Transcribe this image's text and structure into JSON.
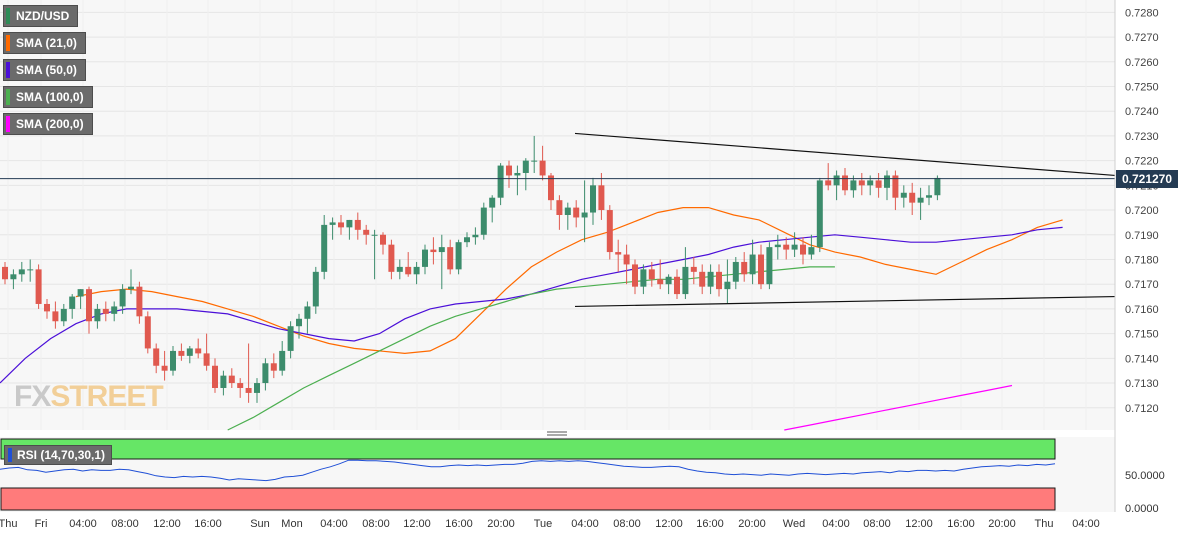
{
  "legend": [
    {
      "label": "NZD/USD",
      "color": "#2e8b57"
    },
    {
      "label": "SMA (21,0)",
      "color": "#ff6a00"
    },
    {
      "label": "SMA (50,0)",
      "color": "#4b0fd8"
    },
    {
      "label": "SMA (100,0)",
      "color": "#4caf50"
    },
    {
      "label": "SMA (200,0)",
      "color": "#ff00ff"
    }
  ],
  "price_label": "0.721270",
  "logo": {
    "part1": "FX",
    "part2": "STREET"
  },
  "rsi": {
    "label": "RSI (14,70,30,1)",
    "axis_labels": [
      "50.0000",
      "0.0000"
    ]
  },
  "colors": {
    "up": "#3c8c6c",
    "down": "#e0594f",
    "grid": "#e6e6e6",
    "overbought_zone": "#66e666",
    "oversold_zone": "#ff7b7b",
    "rsi_line": "#1f4fd6"
  },
  "chart_data": {
    "type": "candlestick",
    "symbol": "NZD/USD",
    "ylim": [
      0.7111,
      0.7285
    ],
    "y_ticks": [
      "0.7280",
      "0.7270",
      "0.7260",
      "0.7250",
      "0.7240",
      "0.7230",
      "0.7220",
      "0.7210",
      "0.7200",
      "0.7190",
      "0.7180",
      "0.7170",
      "0.7160",
      "0.7150",
      "0.7140",
      "0.7130",
      "0.7120"
    ],
    "x_ticks": [
      "Thu",
      "Fri",
      "04:00",
      "08:00",
      "12:00",
      "16:00",
      "Sun",
      "Mon",
      "04:00",
      "08:00",
      "12:00",
      "16:00",
      "20:00",
      "Tue",
      "04:00",
      "08:00",
      "12:00",
      "16:00",
      "20:00",
      "Wed",
      "04:00",
      "08:00",
      "12:00",
      "16:00",
      "20:00",
      "Thu",
      "04:00"
    ],
    "current_price": 0.72127,
    "candles": [
      {
        "o": 0.7177,
        "h": 0.7179,
        "l": 0.717,
        "c": 0.7172
      },
      {
        "o": 0.7172,
        "h": 0.7176,
        "l": 0.7168,
        "c": 0.7174
      },
      {
        "o": 0.7174,
        "h": 0.7179,
        "l": 0.7171,
        "c": 0.7176
      },
      {
        "o": 0.7176,
        "h": 0.718,
        "l": 0.7171,
        "c": 0.7176
      },
      {
        "o": 0.7176,
        "h": 0.7178,
        "l": 0.716,
        "c": 0.7162
      },
      {
        "o": 0.7162,
        "h": 0.7164,
        "l": 0.7156,
        "c": 0.7159
      },
      {
        "o": 0.7159,
        "h": 0.7163,
        "l": 0.7152,
        "c": 0.7155
      },
      {
        "o": 0.7155,
        "h": 0.7162,
        "l": 0.7153,
        "c": 0.716
      },
      {
        "o": 0.716,
        "h": 0.7166,
        "l": 0.7156,
        "c": 0.7165
      },
      {
        "o": 0.7165,
        "h": 0.7168,
        "l": 0.716,
        "c": 0.7168
      },
      {
        "o": 0.7168,
        "h": 0.7169,
        "l": 0.715,
        "c": 0.7155
      },
      {
        "o": 0.7155,
        "h": 0.7162,
        "l": 0.7152,
        "c": 0.716
      },
      {
        "o": 0.716,
        "h": 0.7163,
        "l": 0.7155,
        "c": 0.7158
      },
      {
        "o": 0.7158,
        "h": 0.7163,
        "l": 0.7155,
        "c": 0.7161
      },
      {
        "o": 0.7161,
        "h": 0.717,
        "l": 0.7158,
        "c": 0.7168
      },
      {
        "o": 0.7168,
        "h": 0.7176,
        "l": 0.7166,
        "c": 0.7169
      },
      {
        "o": 0.7169,
        "h": 0.7171,
        "l": 0.7154,
        "c": 0.7157
      },
      {
        "o": 0.7157,
        "h": 0.7159,
        "l": 0.7142,
        "c": 0.7144
      },
      {
        "o": 0.7144,
        "h": 0.7146,
        "l": 0.7134,
        "c": 0.7137
      },
      {
        "o": 0.7137,
        "h": 0.7143,
        "l": 0.7131,
        "c": 0.7135
      },
      {
        "o": 0.7135,
        "h": 0.7145,
        "l": 0.7133,
        "c": 0.7143
      },
      {
        "o": 0.7143,
        "h": 0.7146,
        "l": 0.7139,
        "c": 0.7141
      },
      {
        "o": 0.7141,
        "h": 0.7145,
        "l": 0.7138,
        "c": 0.7144
      },
      {
        "o": 0.7144,
        "h": 0.7148,
        "l": 0.714,
        "c": 0.7142
      },
      {
        "o": 0.7142,
        "h": 0.715,
        "l": 0.7135,
        "c": 0.7137
      },
      {
        "o": 0.7137,
        "h": 0.714,
        "l": 0.7126,
        "c": 0.7128
      },
      {
        "o": 0.7128,
        "h": 0.7135,
        "l": 0.7125,
        "c": 0.7133
      },
      {
        "o": 0.7133,
        "h": 0.7136,
        "l": 0.7128,
        "c": 0.713
      },
      {
        "o": 0.713,
        "h": 0.7132,
        "l": 0.7124,
        "c": 0.7128
      },
      {
        "o": 0.7128,
        "h": 0.7146,
        "l": 0.7122,
        "c": 0.7126
      },
      {
        "o": 0.7126,
        "h": 0.7132,
        "l": 0.7122,
        "c": 0.713
      },
      {
        "o": 0.713,
        "h": 0.714,
        "l": 0.7127,
        "c": 0.7138
      },
      {
        "o": 0.7138,
        "h": 0.7142,
        "l": 0.7132,
        "c": 0.7135
      },
      {
        "o": 0.7135,
        "h": 0.7147,
        "l": 0.7133,
        "c": 0.7143
      },
      {
        "o": 0.7143,
        "h": 0.7155,
        "l": 0.714,
        "c": 0.7153
      },
      {
        "o": 0.7153,
        "h": 0.7158,
        "l": 0.7148,
        "c": 0.7156
      },
      {
        "o": 0.7156,
        "h": 0.7163,
        "l": 0.715,
        "c": 0.7161
      },
      {
        "o": 0.7161,
        "h": 0.7177,
        "l": 0.7158,
        "c": 0.7175
      },
      {
        "o": 0.7175,
        "h": 0.7198,
        "l": 0.7172,
        "c": 0.7194
      },
      {
        "o": 0.7194,
        "h": 0.7197,
        "l": 0.7188,
        "c": 0.7195
      },
      {
        "o": 0.7195,
        "h": 0.7198,
        "l": 0.719,
        "c": 0.7193
      },
      {
        "o": 0.7193,
        "h": 0.7196,
        "l": 0.7188,
        "c": 0.7196
      },
      {
        "o": 0.7196,
        "h": 0.7199,
        "l": 0.7188,
        "c": 0.7192
      },
      {
        "o": 0.7192,
        "h": 0.7194,
        "l": 0.7186,
        "c": 0.719
      },
      {
        "o": 0.719,
        "h": 0.7192,
        "l": 0.7172,
        "c": 0.719
      },
      {
        "o": 0.719,
        "h": 0.7191,
        "l": 0.7182,
        "c": 0.7186
      },
      {
        "o": 0.7186,
        "h": 0.7188,
        "l": 0.7172,
        "c": 0.7175
      },
      {
        "o": 0.7175,
        "h": 0.718,
        "l": 0.7172,
        "c": 0.7177
      },
      {
        "o": 0.7177,
        "h": 0.7183,
        "l": 0.7173,
        "c": 0.7174
      },
      {
        "o": 0.7174,
        "h": 0.7179,
        "l": 0.717,
        "c": 0.7177
      },
      {
        "o": 0.7177,
        "h": 0.7186,
        "l": 0.7174,
        "c": 0.7184
      },
      {
        "o": 0.7184,
        "h": 0.7189,
        "l": 0.7178,
        "c": 0.7183
      },
      {
        "o": 0.7183,
        "h": 0.719,
        "l": 0.7168,
        "c": 0.7185
      },
      {
        "o": 0.7185,
        "h": 0.7188,
        "l": 0.7174,
        "c": 0.7176
      },
      {
        "o": 0.7176,
        "h": 0.7188,
        "l": 0.7174,
        "c": 0.7187
      },
      {
        "o": 0.7187,
        "h": 0.7191,
        "l": 0.7185,
        "c": 0.7189
      },
      {
        "o": 0.7189,
        "h": 0.7193,
        "l": 0.7186,
        "c": 0.719
      },
      {
        "o": 0.719,
        "h": 0.7203,
        "l": 0.7188,
        "c": 0.7201
      },
      {
        "o": 0.7201,
        "h": 0.7206,
        "l": 0.7195,
        "c": 0.7205
      },
      {
        "o": 0.7205,
        "h": 0.7219,
        "l": 0.7202,
        "c": 0.7218
      },
      {
        "o": 0.7218,
        "h": 0.722,
        "l": 0.7209,
        "c": 0.7214
      },
      {
        "o": 0.7214,
        "h": 0.7218,
        "l": 0.7206,
        "c": 0.7215
      },
      {
        "o": 0.7215,
        "h": 0.7221,
        "l": 0.7208,
        "c": 0.722
      },
      {
        "o": 0.722,
        "h": 0.723,
        "l": 0.7215,
        "c": 0.722
      },
      {
        "o": 0.722,
        "h": 0.7226,
        "l": 0.7212,
        "c": 0.7214
      },
      {
        "o": 0.7214,
        "h": 0.7215,
        "l": 0.72,
        "c": 0.7204
      },
      {
        "o": 0.7204,
        "h": 0.7206,
        "l": 0.7192,
        "c": 0.7198
      },
      {
        "o": 0.7198,
        "h": 0.7203,
        "l": 0.7192,
        "c": 0.7201
      },
      {
        "o": 0.7201,
        "h": 0.7204,
        "l": 0.7193,
        "c": 0.7197
      },
      {
        "o": 0.7197,
        "h": 0.7212,
        "l": 0.7187,
        "c": 0.7199
      },
      {
        "o": 0.7199,
        "h": 0.7213,
        "l": 0.7194,
        "c": 0.721
      },
      {
        "o": 0.721,
        "h": 0.7215,
        "l": 0.7196,
        "c": 0.72
      },
      {
        "o": 0.72,
        "h": 0.7202,
        "l": 0.718,
        "c": 0.7183
      },
      {
        "o": 0.7183,
        "h": 0.7188,
        "l": 0.7175,
        "c": 0.7182
      },
      {
        "o": 0.7182,
        "h": 0.7186,
        "l": 0.717,
        "c": 0.7178
      },
      {
        "o": 0.7178,
        "h": 0.718,
        "l": 0.7166,
        "c": 0.7169
      },
      {
        "o": 0.7169,
        "h": 0.7178,
        "l": 0.7166,
        "c": 0.7176
      },
      {
        "o": 0.7176,
        "h": 0.7179,
        "l": 0.7169,
        "c": 0.7172
      },
      {
        "o": 0.7172,
        "h": 0.718,
        "l": 0.7168,
        "c": 0.717
      },
      {
        "o": 0.717,
        "h": 0.7174,
        "l": 0.7166,
        "c": 0.7173
      },
      {
        "o": 0.7173,
        "h": 0.7176,
        "l": 0.7164,
        "c": 0.7166
      },
      {
        "o": 0.7166,
        "h": 0.7185,
        "l": 0.7164,
        "c": 0.7177
      },
      {
        "o": 0.7177,
        "h": 0.7181,
        "l": 0.717,
        "c": 0.7175
      },
      {
        "o": 0.7175,
        "h": 0.7178,
        "l": 0.7166,
        "c": 0.7169
      },
      {
        "o": 0.7169,
        "h": 0.7178,
        "l": 0.7166,
        "c": 0.7175
      },
      {
        "o": 0.7175,
        "h": 0.7178,
        "l": 0.7165,
        "c": 0.7168
      },
      {
        "o": 0.7168,
        "h": 0.718,
        "l": 0.7162,
        "c": 0.7171
      },
      {
        "o": 0.7171,
        "h": 0.7181,
        "l": 0.7168,
        "c": 0.7179
      },
      {
        "o": 0.7179,
        "h": 0.7183,
        "l": 0.7171,
        "c": 0.7174
      },
      {
        "o": 0.7174,
        "h": 0.7188,
        "l": 0.717,
        "c": 0.7182
      },
      {
        "o": 0.7182,
        "h": 0.7186,
        "l": 0.7168,
        "c": 0.717
      },
      {
        "o": 0.717,
        "h": 0.7187,
        "l": 0.7168,
        "c": 0.7185
      },
      {
        "o": 0.7185,
        "h": 0.719,
        "l": 0.718,
        "c": 0.7186
      },
      {
        "o": 0.7186,
        "h": 0.7189,
        "l": 0.718,
        "c": 0.7184
      },
      {
        "o": 0.7184,
        "h": 0.7191,
        "l": 0.7181,
        "c": 0.7186
      },
      {
        "o": 0.7186,
        "h": 0.7189,
        "l": 0.7178,
        "c": 0.7182
      },
      {
        "o": 0.7182,
        "h": 0.719,
        "l": 0.718,
        "c": 0.7185
      },
      {
        "o": 0.7185,
        "h": 0.7213,
        "l": 0.7183,
        "c": 0.7212
      },
      {
        "o": 0.7212,
        "h": 0.7219,
        "l": 0.7208,
        "c": 0.721
      },
      {
        "o": 0.721,
        "h": 0.7216,
        "l": 0.7204,
        "c": 0.7214
      },
      {
        "o": 0.7214,
        "h": 0.7217,
        "l": 0.7206,
        "c": 0.7208
      },
      {
        "o": 0.7208,
        "h": 0.7214,
        "l": 0.7205,
        "c": 0.7212
      },
      {
        "o": 0.7212,
        "h": 0.7215,
        "l": 0.7206,
        "c": 0.721
      },
      {
        "o": 0.721,
        "h": 0.7214,
        "l": 0.7206,
        "c": 0.7212
      },
      {
        "o": 0.7212,
        "h": 0.7215,
        "l": 0.7205,
        "c": 0.7209
      },
      {
        "o": 0.7209,
        "h": 0.7216,
        "l": 0.7204,
        "c": 0.7214
      },
      {
        "o": 0.7214,
        "h": 0.7216,
        "l": 0.72,
        "c": 0.7205
      },
      {
        "o": 0.7205,
        "h": 0.721,
        "l": 0.7201,
        "c": 0.7207
      },
      {
        "o": 0.7207,
        "h": 0.7211,
        "l": 0.7198,
        "c": 0.7203
      },
      {
        "o": 0.7203,
        "h": 0.7209,
        "l": 0.7196,
        "c": 0.7205
      },
      {
        "o": 0.7205,
        "h": 0.721,
        "l": 0.7202,
        "c": 0.7206
      },
      {
        "o": 0.7206,
        "h": 0.7214,
        "l": 0.7204,
        "c": 0.7213
      }
    ],
    "sma_series": [
      {
        "name": "SMA (21,0)",
        "values": [
          null,
          null,
          null,
          0.7165,
          0.7167,
          0.7168,
          0.7167,
          0.7165,
          0.7163,
          0.716,
          0.7157,
          0.7153,
          0.7149,
          0.7146,
          0.7144,
          0.7143,
          0.7142,
          0.7143,
          0.7148,
          0.7158,
          0.7168,
          0.7177,
          0.7183,
          0.7188,
          0.7191,
          0.7195,
          0.7199,
          0.7201,
          0.7201,
          0.7198,
          0.7196,
          0.7191,
          0.7186,
          0.7183,
          0.7181,
          0.7178,
          0.7176,
          0.7174,
          0.7179,
          0.7184,
          0.7188,
          0.7193,
          0.7196
        ]
      },
      {
        "name": "SMA (50,0)",
        "values": [
          0.713,
          0.714,
          0.7148,
          0.7154,
          0.7158,
          0.716,
          0.716,
          0.716,
          0.7159,
          0.7158,
          0.7155,
          0.7152,
          0.715,
          0.7148,
          0.7147,
          0.715,
          0.7156,
          0.716,
          0.7162,
          0.7163,
          0.7164,
          0.7166,
          0.7169,
          0.7172,
          0.7174,
          0.7176,
          0.7178,
          0.718,
          0.7182,
          0.7185,
          0.7187,
          0.7188,
          0.7189,
          0.719,
          0.7189,
          0.7188,
          0.7187,
          0.7187,
          0.7188,
          0.7189,
          0.719,
          0.7192,
          0.7193
        ]
      },
      {
        "name": "SMA (100,0)",
        "values": [
          null,
          null,
          null,
          null,
          null,
          null,
          null,
          null,
          null,
          0.7111,
          0.7116,
          0.7122,
          0.7128,
          0.7133,
          0.7138,
          0.7143,
          0.7148,
          0.7153,
          0.7157,
          0.716,
          0.7163,
          0.7166,
          0.7168,
          0.7169,
          0.717,
          0.7171,
          0.7172,
          0.7172,
          0.7173,
          0.7174,
          0.7175,
          0.7176,
          0.7177,
          0.7177
        ]
      },
      {
        "name": "SMA (200,0)",
        "values": [
          null,
          null,
          null,
          null,
          null,
          null,
          null,
          null,
          null,
          null,
          null,
          null,
          null,
          null,
          null,
          null,
          null,
          null,
          null,
          null,
          null,
          null,
          null,
          null,
          null,
          null,
          null,
          null,
          null,
          null,
          null,
          0.7111,
          0.7113,
          0.7115,
          0.7117,
          0.7119,
          0.7121,
          0.7123,
          0.7125,
          0.7127,
          0.7129
        ]
      }
    ],
    "trendlines": [
      {
        "name": "resistance",
        "from": [
          63,
          0.7231
        ],
        "to": [
          125,
          0.7214
        ]
      },
      {
        "name": "support",
        "from": [
          63,
          0.7161
        ],
        "to": [
          125,
          0.7165
        ]
      }
    ],
    "rsi": {
      "ylim": [
        0,
        100
      ],
      "overbought": 70,
      "oversold": 30,
      "values": [
        58,
        60,
        61,
        57,
        56,
        53,
        55,
        57,
        58,
        55,
        57,
        56,
        56,
        58,
        57,
        54,
        51,
        47,
        45,
        44,
        46,
        45,
        46,
        45,
        43,
        40,
        42,
        41,
        40,
        39,
        41,
        45,
        46,
        48,
        53,
        58,
        62,
        67,
        73,
        73,
        72,
        72,
        71,
        70,
        68,
        66,
        64,
        62,
        62,
        64,
        65,
        64,
        65,
        64,
        65,
        66,
        66,
        68,
        71,
        72,
        71,
        72,
        71,
        72,
        71,
        69,
        67,
        65,
        63,
        62,
        61,
        61,
        62,
        63,
        62,
        58,
        55,
        53,
        52,
        50,
        49,
        50,
        49,
        48,
        50,
        49,
        48,
        50,
        51,
        50,
        49,
        50,
        51,
        50,
        52,
        53,
        54,
        52,
        55,
        54,
        56,
        56,
        55,
        56,
        55,
        58,
        60,
        62,
        63,
        64,
        63,
        65,
        64,
        66,
        65,
        67
      ]
    }
  }
}
